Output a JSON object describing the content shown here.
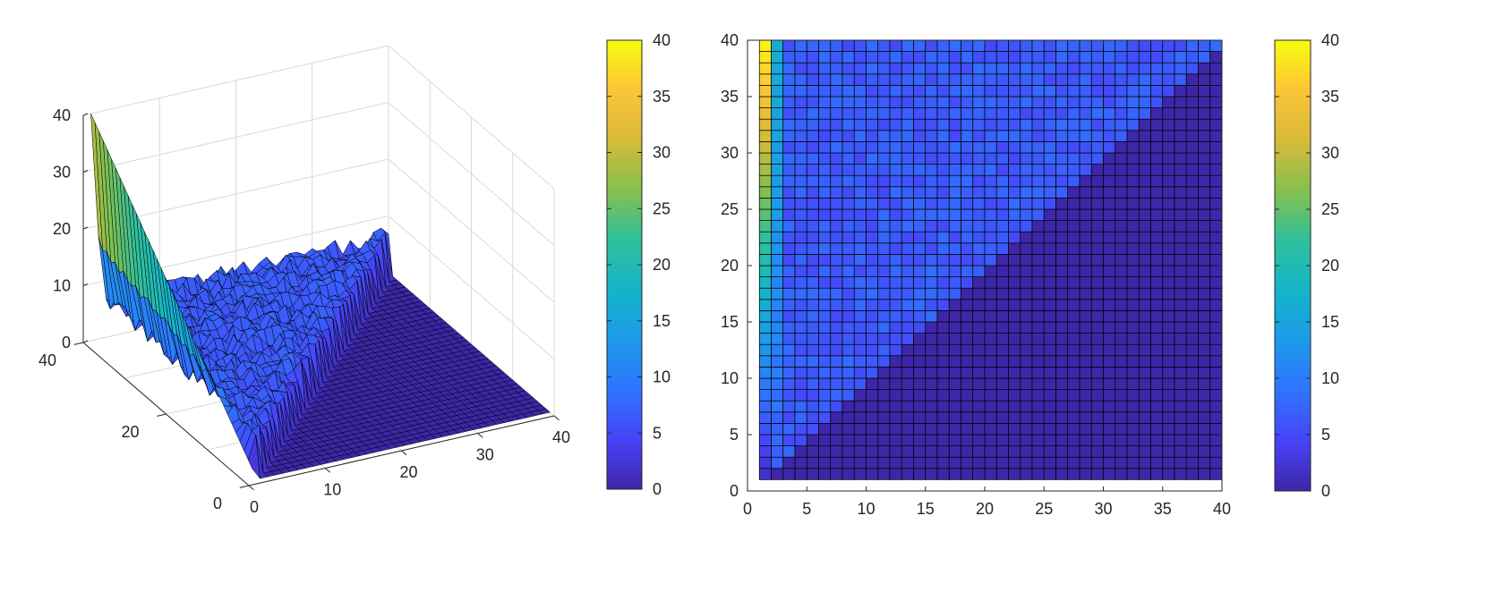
{
  "chart_data": [
    {
      "type": "surface",
      "title": "",
      "xlabel": "",
      "ylabel": "",
      "zlabel": "",
      "x_ticks": [
        "0",
        "10",
        "20",
        "30",
        "40"
      ],
      "y_ticks": [
        "0",
        "20",
        "40"
      ],
      "z_ticks": [
        "0",
        "10",
        "20",
        "30",
        "40"
      ],
      "xlim": [
        0,
        40
      ],
      "ylim": [
        0,
        40
      ],
      "zlim": [
        0,
        40
      ],
      "grid": true,
      "grid_size": 40,
      "data_ref": "shared_matrix",
      "colorbar": {
        "ticks": [
          "0",
          "5",
          "10",
          "15",
          "20",
          "25",
          "30",
          "35",
          "40"
        ],
        "range": [
          0,
          40
        ]
      }
    },
    {
      "type": "heatmap",
      "title": "",
      "xlabel": "",
      "ylabel": "",
      "x_ticks": [
        "0",
        "5",
        "10",
        "15",
        "20",
        "25",
        "30",
        "35",
        "40"
      ],
      "y_ticks": [
        "0",
        "5",
        "10",
        "15",
        "20",
        "25",
        "30",
        "35",
        "40"
      ],
      "xlim": [
        0,
        40
      ],
      "ylim": [
        0,
        40
      ],
      "grid_size": 40,
      "data_ref": "shared_matrix",
      "description_of_values": "Z(x,y): 0 where y < x; column x=1 rises from about 2 at y=1 to 40 at y=40; elsewhere above the diagonal values are roughly 5-8 with noise",
      "colorbar": {
        "ticks": [
          "0",
          "5",
          "10",
          "15",
          "20",
          "25",
          "30",
          "35",
          "40"
        ],
        "range": [
          0,
          40
        ]
      }
    }
  ],
  "colormap": [
    "#3e26a8",
    "#4743f8",
    "#2f74ff",
    "#1d9ae9",
    "#14b4c9",
    "#2fc09b",
    "#86c04e",
    "#d7ba39",
    "#fcc537",
    "#f9fb0e"
  ],
  "colors": {
    "axis": "#262626",
    "grid": "#d9d9d9",
    "edge": "#000000"
  }
}
